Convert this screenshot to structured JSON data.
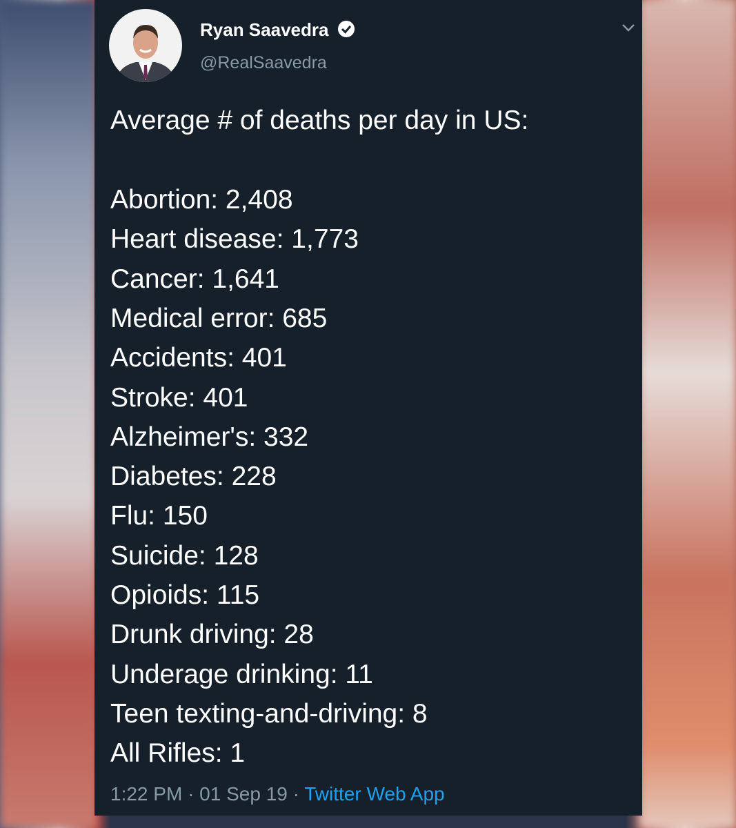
{
  "tweet": {
    "author": {
      "name": "Ryan Saavedra",
      "handle": "@RealSaavedra"
    },
    "heading": "Average # of deaths per day in US:",
    "lines": [
      "Abortion: 2,408",
      "Heart disease: 1,773",
      "Cancer: 1,641",
      "Medical error: 685",
      "Accidents: 401",
      "Stroke: 401",
      "Alzheimer's: 332",
      "Diabetes: 228",
      "Flu: 150",
      "Suicide: 128",
      "Opioids: 115",
      "Drunk driving: 28",
      "Underage drinking: 11",
      "Teen texting-and-driving: 8",
      "All Rifles: 1"
    ],
    "footer": {
      "time": "1:22 PM",
      "separator": "·",
      "date": "01 Sep 19",
      "source": "Twitter Web App"
    }
  }
}
